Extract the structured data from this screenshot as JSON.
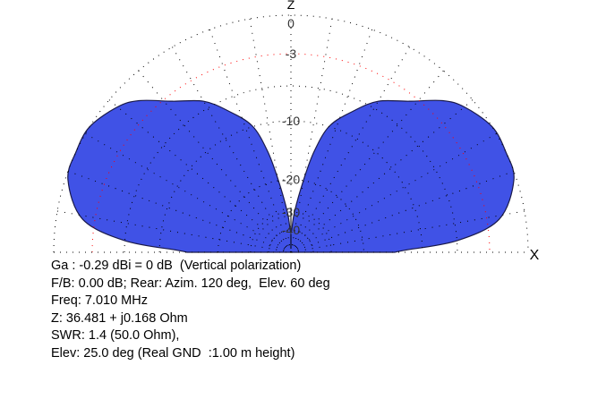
{
  "chart_data": {
    "type": "polar-area",
    "axis_labels": {
      "vertical": "Z",
      "horizontal": "X"
    },
    "ring_labels_db": [
      0,
      -3,
      -10,
      -20,
      -30,
      -40
    ],
    "highlight_ring_db": -3,
    "angle_unit": "deg elevation",
    "series": [
      {
        "elevation_deg": [
          0,
          1,
          4,
          9,
          18,
          25,
          32,
          40,
          45,
          52,
          60,
          66,
          73,
          77,
          80,
          85,
          88,
          90
        ],
        "gain_db": [
          -14,
          -12.5,
          -6,
          -2,
          -0.2,
          0,
          0,
          -0.8,
          -1.7,
          -3.6,
          -5.2,
          -7.2,
          -9.9,
          -14,
          -19.7,
          -30,
          -40,
          -40
        ],
        "symmetric": true
      }
    ],
    "grid": true
  },
  "colors": {
    "fill": "#4052e6",
    "outline": "#1a1a4a",
    "grid": "#000000",
    "highlight_ring": "#ff0000",
    "labels": "#333333"
  },
  "info": {
    "line1": "Ga : -0.29 dBi = 0 dB  (Vertical polarization)",
    "line2": "F/B: 0.00 dB; Rear: Azim. 120 deg,  Elev. 60 deg",
    "line3": "Freq: 7.010 MHz",
    "line4": "Z: 36.481 + j0.168 Ohm",
    "line5": "SWR: 1.4 (50.0 Ohm),",
    "line6": "Elev: 25.0 deg (Real GND  :1.00 m height)"
  }
}
